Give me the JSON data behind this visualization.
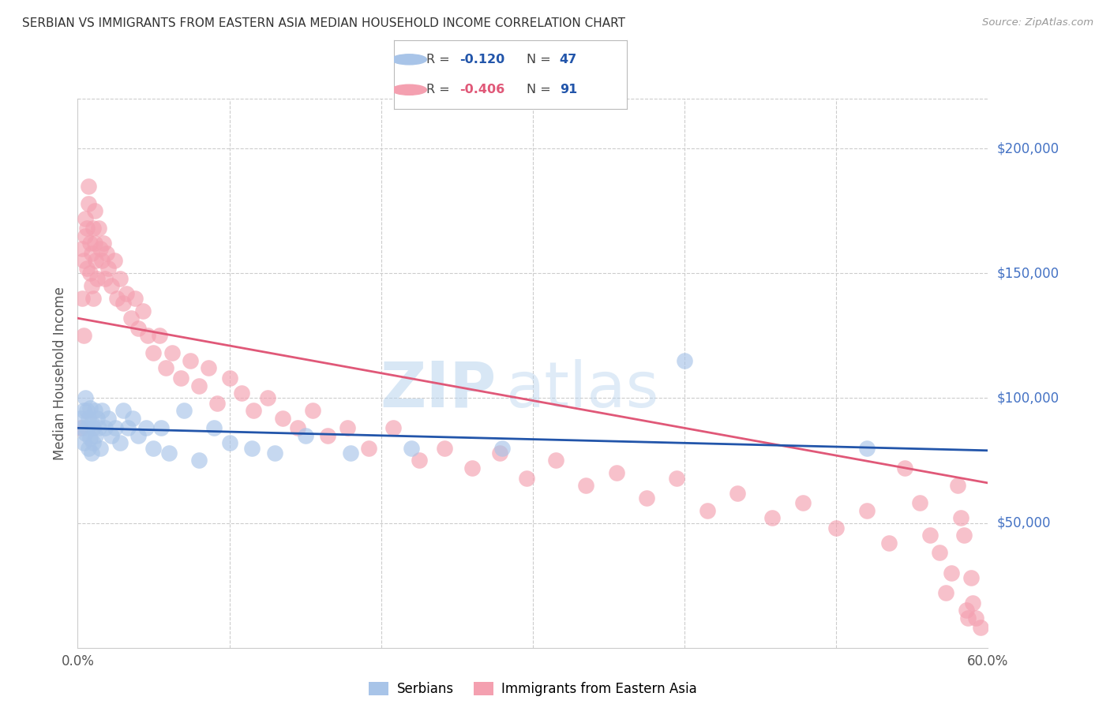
{
  "title": "SERBIAN VS IMMIGRANTS FROM EASTERN ASIA MEDIAN HOUSEHOLD INCOME CORRELATION CHART",
  "source": "Source: ZipAtlas.com",
  "ylabel": "Median Household Income",
  "ytick_labels": [
    "$50,000",
    "$100,000",
    "$150,000",
    "$200,000"
  ],
  "ytick_values": [
    50000,
    100000,
    150000,
    200000
  ],
  "ymin": 0,
  "ymax": 220000,
  "xmin": 0.0,
  "xmax": 0.6,
  "r_serbian": -0.12,
  "n_serbian": 47,
  "r_eastern_asia": -0.406,
  "n_eastern_asia": 91,
  "title_color": "#333333",
  "source_color": "#999999",
  "ylabel_color": "#555555",
  "ytick_color": "#4472c4",
  "grid_color": "#cccccc",
  "serbian_color": "#a8c4e8",
  "eastern_asia_color": "#f4a0b0",
  "serbian_line_color": "#2255aa",
  "eastern_asia_line_color": "#e05878",
  "serbian_line_intercept": 88000,
  "serbian_line_slope": -15000,
  "eastern_asia_line_intercept": 132000,
  "eastern_asia_line_slope": -110000,
  "serbian_scatter_x": [
    0.002,
    0.003,
    0.004,
    0.004,
    0.005,
    0.005,
    0.006,
    0.006,
    0.007,
    0.007,
    0.008,
    0.008,
    0.009,
    0.009,
    0.01,
    0.01,
    0.011,
    0.012,
    0.013,
    0.014,
    0.015,
    0.016,
    0.018,
    0.02,
    0.022,
    0.025,
    0.028,
    0.03,
    0.033,
    0.036,
    0.04,
    0.045,
    0.05,
    0.055,
    0.06,
    0.07,
    0.08,
    0.09,
    0.1,
    0.115,
    0.13,
    0.15,
    0.18,
    0.22,
    0.28,
    0.4,
    0.52
  ],
  "serbian_scatter_y": [
    92000,
    88000,
    95000,
    82000,
    100000,
    86000,
    95000,
    88000,
    92000,
    80000,
    96000,
    84000,
    90000,
    78000,
    88000,
    82000,
    95000,
    85000,
    92000,
    88000,
    80000,
    95000,
    88000,
    92000,
    85000,
    88000,
    82000,
    95000,
    88000,
    92000,
    85000,
    88000,
    80000,
    88000,
    78000,
    95000,
    75000,
    88000,
    82000,
    80000,
    78000,
    85000,
    78000,
    80000,
    80000,
    115000,
    80000
  ],
  "eastern_asia_scatter_x": [
    0.002,
    0.003,
    0.003,
    0.004,
    0.004,
    0.005,
    0.005,
    0.006,
    0.006,
    0.007,
    0.007,
    0.008,
    0.008,
    0.009,
    0.009,
    0.01,
    0.01,
    0.011,
    0.011,
    0.012,
    0.013,
    0.014,
    0.015,
    0.016,
    0.017,
    0.018,
    0.019,
    0.02,
    0.022,
    0.024,
    0.026,
    0.028,
    0.03,
    0.032,
    0.035,
    0.038,
    0.04,
    0.043,
    0.046,
    0.05,
    0.054,
    0.058,
    0.062,
    0.068,
    0.074,
    0.08,
    0.086,
    0.092,
    0.1,
    0.108,
    0.116,
    0.125,
    0.135,
    0.145,
    0.155,
    0.165,
    0.178,
    0.192,
    0.208,
    0.225,
    0.242,
    0.26,
    0.278,
    0.296,
    0.315,
    0.335,
    0.355,
    0.375,
    0.395,
    0.415,
    0.435,
    0.458,
    0.478,
    0.5,
    0.52,
    0.535,
    0.545,
    0.555,
    0.562,
    0.568,
    0.572,
    0.576,
    0.58,
    0.582,
    0.584,
    0.586,
    0.587,
    0.589,
    0.59,
    0.592,
    0.595
  ],
  "eastern_asia_scatter_y": [
    88000,
    140000,
    160000,
    155000,
    125000,
    165000,
    172000,
    168000,
    152000,
    178000,
    185000,
    162000,
    150000,
    158000,
    145000,
    168000,
    140000,
    162000,
    175000,
    155000,
    148000,
    168000,
    160000,
    155000,
    162000,
    148000,
    158000,
    152000,
    145000,
    155000,
    140000,
    148000,
    138000,
    142000,
    132000,
    140000,
    128000,
    135000,
    125000,
    118000,
    125000,
    112000,
    118000,
    108000,
    115000,
    105000,
    112000,
    98000,
    108000,
    102000,
    95000,
    100000,
    92000,
    88000,
    95000,
    85000,
    88000,
    80000,
    88000,
    75000,
    80000,
    72000,
    78000,
    68000,
    75000,
    65000,
    70000,
    60000,
    68000,
    55000,
    62000,
    52000,
    58000,
    48000,
    55000,
    42000,
    72000,
    58000,
    45000,
    38000,
    22000,
    30000,
    65000,
    52000,
    45000,
    15000,
    12000,
    28000,
    18000,
    12000,
    8000
  ]
}
